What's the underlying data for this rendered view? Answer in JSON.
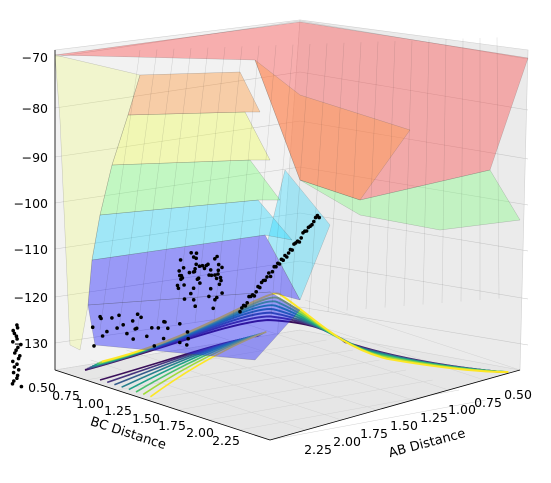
{
  "chart_data": {
    "type": "surface3d",
    "title": "",
    "xlabel": "AB Distance",
    "ylabel": "BC Distance",
    "zlabel": "",
    "x_ticks": [
      "0.50",
      "0.75",
      "1.00",
      "1.25",
      "1.50",
      "1.75",
      "2.00",
      "2.25"
    ],
    "y_ticks": [
      "0.50",
      "0.75",
      "1.00",
      "1.25",
      "1.50",
      "1.75",
      "2.00",
      "2.25"
    ],
    "z_ticks": [
      "−70",
      "−80",
      "−90",
      "−100",
      "−110",
      "−120",
      "−130"
    ],
    "xlim": [
      0.5,
      2.3
    ],
    "ylim": [
      0.5,
      2.3
    ],
    "zlim": [
      -132,
      -68
    ],
    "colormap_surface": "jet",
    "colormap_contour": "viridis",
    "surface_band_colors": [
      "#2020ff",
      "#30d8ff",
      "#80ff80",
      "#f0ff60",
      "#ff9a40",
      "#ff4040",
      "#c02020"
    ],
    "contour_colors": [
      "#3a0f5a",
      "#46337e",
      "#365c8d",
      "#277f8e",
      "#1fa187",
      "#4ac16d",
      "#a0da39",
      "#fde725"
    ],
    "trajectory": {
      "label": "",
      "color": "#000000",
      "point_count_estimate": 150
    },
    "grid": true
  }
}
